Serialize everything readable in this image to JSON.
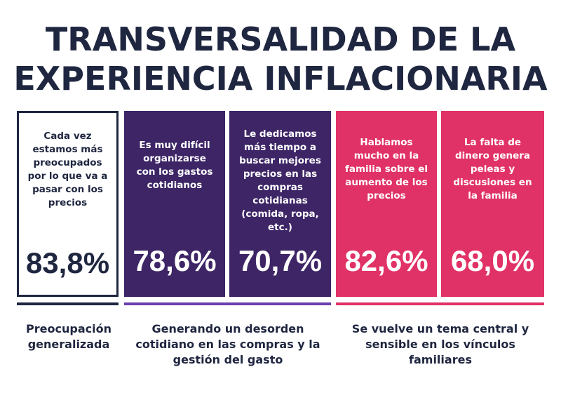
{
  "title": {
    "line1": "TRANSVERSALIDAD DE LA",
    "line2": "EXPERIENCIA INFLACIONARIA"
  },
  "cards": [
    {
      "text": "Cada vez estamos más preocupados por lo que va a pasar con los precios",
      "value": "83,8%"
    },
    {
      "text": "Es muy difícil organizarse con los gastos cotidianos",
      "value": "78,6%"
    },
    {
      "text": "Le dedicamos más tiempo a buscar mejores precios en las compras cotidianas (comida, ropa, etc.)",
      "value": "70,7%"
    },
    {
      "text": "Hablamos mucho en la familia sobre el aumento de los precios",
      "value": "82,6%"
    },
    {
      "text": "La falta de dinero genera peleas y discusiones en la familia",
      "value": "68,0%"
    }
  ],
  "groups": [
    {
      "caption": "Preocupación generalizada"
    },
    {
      "caption": "Generando un desorden cotidiano en las compras y la gestión del gasto"
    },
    {
      "caption": "Se vuelve un tema central y sensible en los vínculos familiares"
    }
  ],
  "colors": {
    "navy": "#1f2640",
    "purple": "#3d2566",
    "pink": "#e03266",
    "purple_bar": "#6a3fb0"
  }
}
